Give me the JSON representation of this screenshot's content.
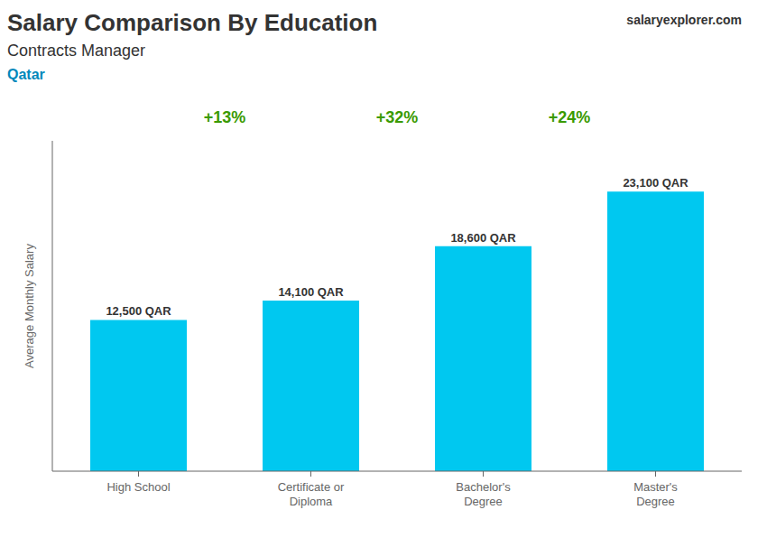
{
  "chart_data": {
    "type": "bar",
    "title": "Salary Comparison By Education",
    "subtitle": "Contracts Manager",
    "annotations": [
      "Qatar",
      "salaryexplorer.com",
      "+13%",
      "+32%",
      "+24%"
    ],
    "y_label": "Average Monthly Salary",
    "categories": [
      "High School",
      "Certificate or\nDiploma",
      "Bachelor's\nDegree",
      "Master's\nDegree"
    ],
    "values": [
      12500,
      14100,
      18600,
      23100
    ],
    "value_labels": [
      "12,500 QAR",
      "14,100 QAR",
      "18,600 QAR",
      "23,100 QAR"
    ],
    "color": "#00c8f0",
    "ylim": [
      0,
      27300
    ],
    "grid": false,
    "data_labels": true,
    "tick_labels": "x"
  }
}
